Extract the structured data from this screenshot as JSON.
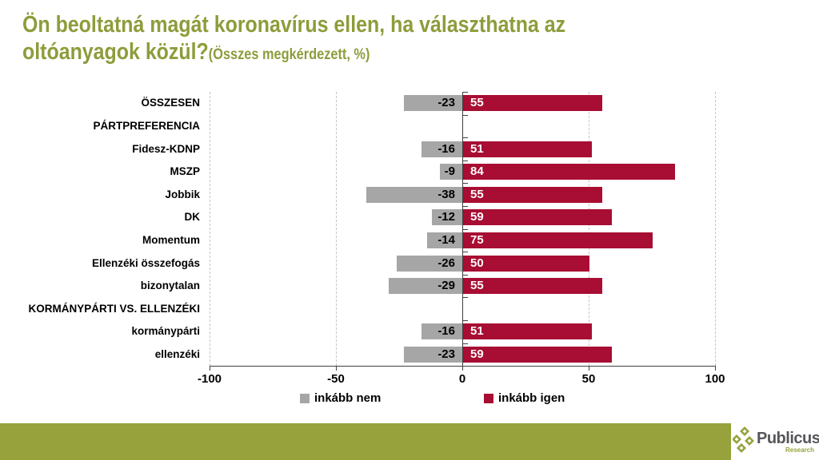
{
  "title": {
    "line1": "Ön beoltatná magát koronavírus ellen, ha választhatna az",
    "line2": "oltóanyagok közül?",
    "subtitle": "(Összes megkérdezett, %)"
  },
  "chart_data": {
    "type": "bar",
    "orientation": "horizontal-diverging",
    "title": "Ön beoltatná magát koronavírus ellen, ha választhatna az oltóanyagok közül? (Összes megkérdezett, %)",
    "categories": [
      "ÖSSZESEN",
      "PÁRTPREFERENCIA",
      "Fidesz-KDNP",
      "MSZP",
      "Jobbik",
      "DK",
      "Momentum",
      "Ellenzéki összefogás",
      "bizonytalan",
      "KORMÁNYPÁRTI VS. ELLENZÉKI",
      "kormánypárti",
      "ellenzéki"
    ],
    "header_rows": [
      "PÁRTPREFERENCIA",
      "KORMÁNYPÁRTI VS. ELLENZÉKI"
    ],
    "series": [
      {
        "name": "inkább nem",
        "color": "#A6A6A6",
        "values": [
          -23,
          null,
          -16,
          -9,
          -38,
          -12,
          -14,
          -26,
          -29,
          null,
          -16,
          -23
        ]
      },
      {
        "name": "inkább igen",
        "color": "#A80D33",
        "values": [
          55,
          null,
          51,
          84,
          55,
          59,
          75,
          50,
          55,
          null,
          51,
          59
        ]
      }
    ],
    "xlim": [
      -100,
      100
    ],
    "xticks": [
      -100,
      -50,
      0,
      50,
      100
    ],
    "grid": "vertical dashed at -100, -50, 50, 100; solid axis at 0",
    "legend_position": "bottom"
  },
  "footer": {
    "brand": "Publicus",
    "brand_sub": "Research"
  },
  "icons": {
    "logo": "four-diamonds-icon"
  },
  "colors": {
    "title": "#8E9C3B",
    "bar_nem": "#A6A6A6",
    "bar_igen": "#A80D33",
    "footer_bar": "#97A23D",
    "brand_text": "#55565A",
    "gridline": "#C6C6C6",
    "axis": "#404040"
  }
}
